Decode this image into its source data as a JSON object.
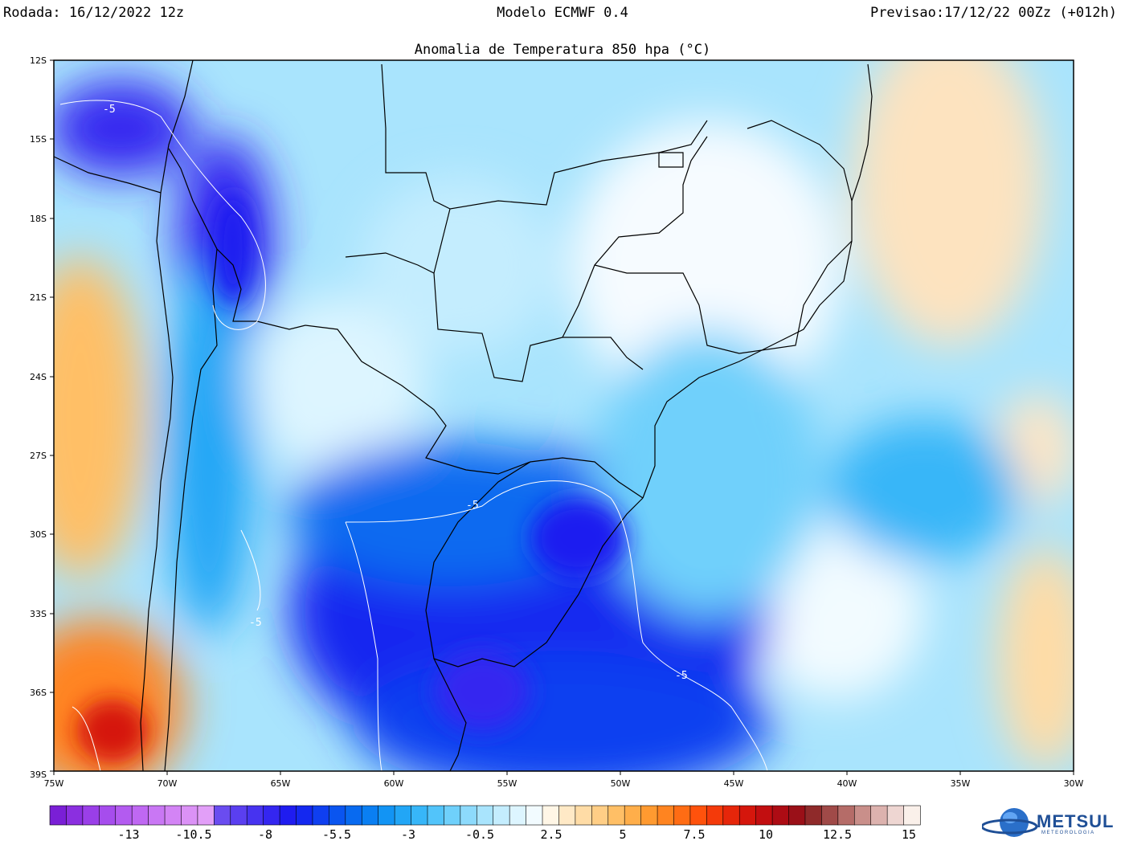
{
  "header": {
    "rodada": "Rodada: 16/12/2022 12z",
    "modelo": "Modelo ECMWF 0.4",
    "previsao": "Previsao:17/12/22 00Zz (+012h)"
  },
  "map": {
    "title": "Anomalia de Temperatura 850 hpa (°C)",
    "lat_labels": [
      "12S",
      "15S",
      "18S",
      "21S",
      "24S",
      "27S",
      "30S",
      "33S",
      "36S",
      "39S"
    ],
    "lon_labels": [
      "75W",
      "70W",
      "65W",
      "60W",
      "55W",
      "50W",
      "45W",
      "40W",
      "35W",
      "30W"
    ],
    "contour_labels": [
      "-5",
      "-5",
      "-5",
      "-5"
    ]
  },
  "colorbar": {
    "labels": [
      "-13",
      "-10.5",
      "-8",
      "-5.5",
      "-3",
      "-0.5",
      "2.5",
      "5",
      "7.5",
      "10",
      "12.5",
      "15"
    ],
    "colors": [
      "#7a1fd6",
      "#8b2fe0",
      "#9a3fe8",
      "#a64ded",
      "#b35bf0",
      "#bf68f2",
      "#c977f4",
      "#d384f5",
      "#db92f6",
      "#e29ff8",
      "#6a4cf0",
      "#5a3ff0",
      "#4733f0",
      "#3426f0",
      "#1f1cf0",
      "#1428f0",
      "#0f3ff0",
      "#0a55f0",
      "#086af0",
      "#0a7ff2",
      "#1294f4",
      "#22a6f6",
      "#37b6f8",
      "#52c4fa",
      "#6fd0fb",
      "#8ddafc",
      "#a9e4fd",
      "#c4edfe",
      "#ddf5ff",
      "#f2fbff",
      "#fff6e6",
      "#ffe9c6",
      "#ffdca6",
      "#ffce86",
      "#ffbf66",
      "#ffae4a",
      "#ff9a30",
      "#ff8420",
      "#ff6c14",
      "#ff520c",
      "#f43a0a",
      "#e6260a",
      "#d5160c",
      "#c20e10",
      "#ad0c14",
      "#9a1018",
      "#8f2a2a",
      "#a04a48",
      "#b56c68",
      "#c98f8a",
      "#dcb2ae",
      "#eed6d2",
      "#faf0ea"
    ],
    "accent_colors": {
      "land_lines": "#000000",
      "contour": "#ffffff",
      "frame": "#000000"
    }
  },
  "logo": {
    "text": "METSUL",
    "subtext": "METEOROLOGIA",
    "icon": "globe-icon"
  }
}
